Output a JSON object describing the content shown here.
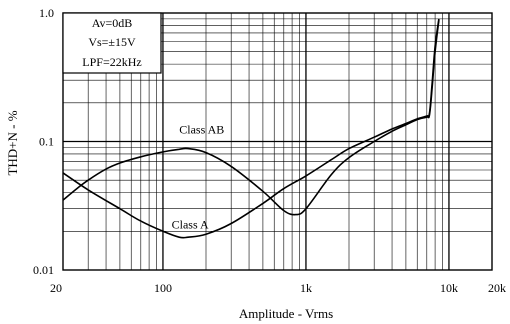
{
  "chart_data": {
    "type": "line",
    "title": "",
    "xlabel": "Amplitude - Vrms",
    "ylabel": "THD+N - %",
    "xscale": "log",
    "yscale": "log",
    "xlim": [
      20,
      20000
    ],
    "ylim": [
      0.01,
      1.0
    ],
    "xticks": [
      {
        "value": 20,
        "label": "20"
      },
      {
        "value": 100,
        "label": "100"
      },
      {
        "value": 1000,
        "label": "1k"
      },
      {
        "value": 10000,
        "label": "10k"
      },
      {
        "value": 20000,
        "label": "20k"
      }
    ],
    "yticks": [
      {
        "value": 0.01,
        "label": "0.01"
      },
      {
        "value": 0.1,
        "label": "0.1"
      },
      {
        "value": 1.0,
        "label": "1.0"
      }
    ],
    "grid": true,
    "legend": [],
    "notes": [
      "Av=0dB",
      "Vs=±15V",
      "LPF=22kHz"
    ],
    "series": [
      {
        "name": "Class AB",
        "x": [
          20,
          25,
          30,
          40,
          50,
          70,
          100,
          130,
          150,
          200,
          300,
          500,
          700,
          850,
          1000,
          1500,
          2000,
          3000,
          4000,
          5000,
          6000,
          7000,
          7300,
          7600,
          8000,
          8500
        ],
        "y": [
          0.035,
          0.043,
          0.05,
          0.061,
          0.068,
          0.076,
          0.083,
          0.087,
          0.088,
          0.082,
          0.064,
          0.041,
          0.029,
          0.027,
          0.03,
          0.055,
          0.075,
          0.1,
          0.12,
          0.135,
          0.148,
          0.155,
          0.16,
          0.25,
          0.5,
          0.88
        ]
      },
      {
        "name": "Class A",
        "x": [
          20,
          30,
          50,
          70,
          100,
          130,
          150,
          200,
          300,
          500,
          700,
          1000,
          1500,
          2000,
          3000,
          4000,
          5000,
          6000,
          7000,
          7300,
          7600,
          8000,
          8500
        ],
        "y": [
          0.057,
          0.042,
          0.03,
          0.024,
          0.02,
          0.018,
          0.018,
          0.019,
          0.023,
          0.033,
          0.043,
          0.054,
          0.072,
          0.088,
          0.108,
          0.125,
          0.138,
          0.15,
          0.158,
          0.165,
          0.27,
          0.55,
          0.9
        ]
      }
    ],
    "annotations": [
      {
        "text": "Class AB",
        "x": 130,
        "y": 0.115
      },
      {
        "text": "Class A",
        "x": 115,
        "y": 0.021
      }
    ]
  }
}
